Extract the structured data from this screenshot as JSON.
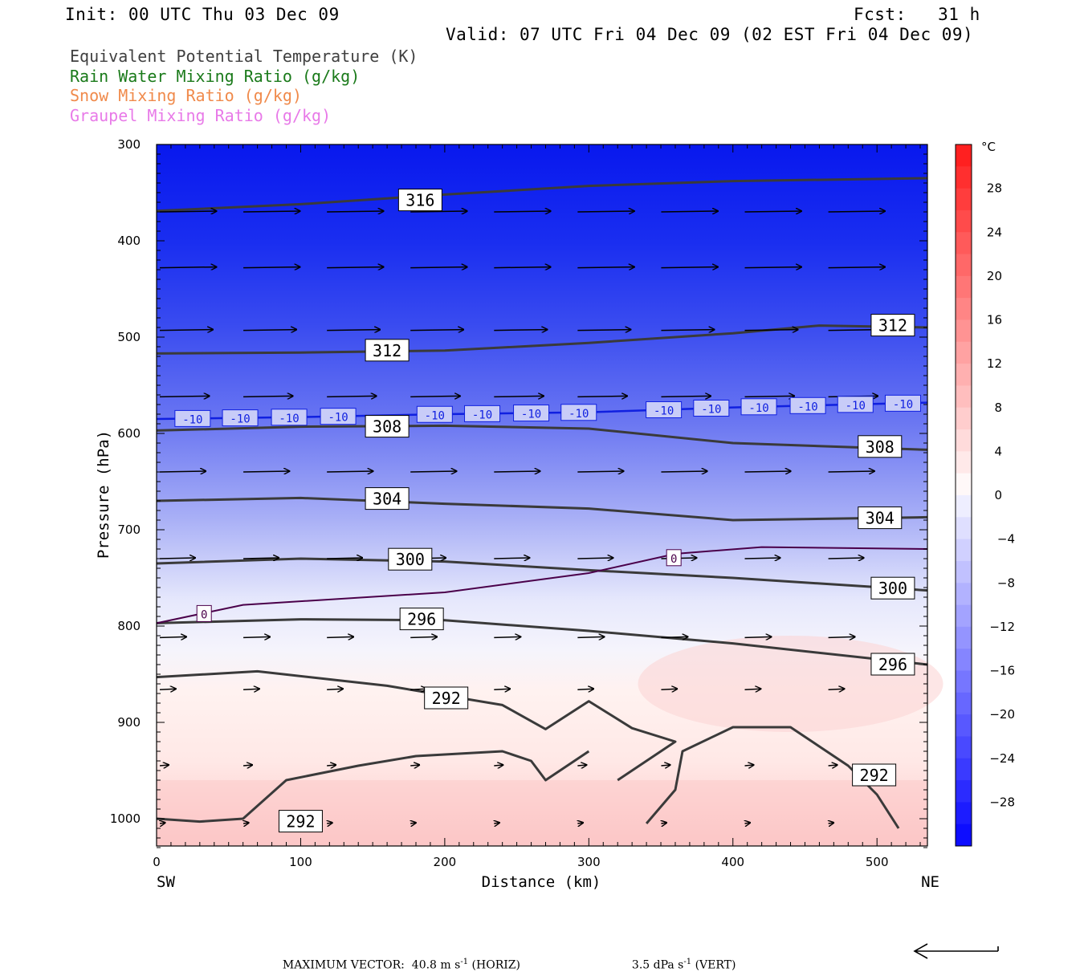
{
  "header": {
    "init": "Init: 00 UTC Thu 03 Dec 09",
    "fcst": "Fcst:   31 h",
    "valid": "Valid: 07 UTC Fri 04 Dec 09 (02 EST Fri 04 Dec 09)"
  },
  "legend": [
    {
      "text": "Equivalent Potential Temperature (K)",
      "color": "#404040"
    },
    {
      "text": "Rain Water Mixing Ratio (g/kg)",
      "color": "#1a7a1a"
    },
    {
      "text": "Snow Mixing Ratio (g/kg)",
      "color": "#f08a4b"
    },
    {
      "text": "Graupel Mixing Ratio (g/kg)",
      "color": "#e87ae8"
    }
  ],
  "footer": {
    "max_vector_label": "MAXIMUM VECTOR:",
    "horiz": "40.8 m s",
    "horiz_unit": "(HORIZ)",
    "vert": "3.5 dPa s",
    "vert_unit": "(VERT)",
    "exp": "-1"
  },
  "chart_data": {
    "type": "contour cross-section",
    "xlabel": "Distance (km)",
    "ylabel": "Pressure (hPa)",
    "x_ticks": [
      0,
      100,
      200,
      300,
      400,
      500
    ],
    "y_ticks": [
      300,
      400,
      500,
      600,
      700,
      800,
      900,
      1000
    ],
    "xlim": [
      0,
      535
    ],
    "ylim": [
      1030,
      300
    ],
    "x_end_labels": {
      "left": "SW",
      "right": "NE"
    },
    "colorbar": {
      "unit": "°C",
      "ticks": [
        28,
        24,
        20,
        16,
        12,
        8,
        4,
        0,
        -4,
        -8,
        -12,
        -16,
        -20,
        -24,
        -28
      ],
      "range": [
        -32,
        32
      ]
    },
    "theta_e_contours": [
      {
        "value": 316,
        "points": [
          [
            0,
            369
          ],
          [
            100,
            362
          ],
          [
            200,
            352
          ],
          [
            300,
            343
          ],
          [
            400,
            338
          ],
          [
            535,
            335
          ]
        ]
      },
      {
        "value": 312,
        "points": [
          [
            0,
            517
          ],
          [
            100,
            516
          ],
          [
            200,
            514
          ],
          [
            300,
            506
          ],
          [
            400,
            496
          ],
          [
            460,
            488
          ],
          [
            535,
            490
          ]
        ]
      },
      {
        "value": 308,
        "points": [
          [
            0,
            597
          ],
          [
            100,
            593
          ],
          [
            200,
            592
          ],
          [
            300,
            595
          ],
          [
            400,
            610
          ],
          [
            535,
            617
          ]
        ]
      },
      {
        "value": 304,
        "points": [
          [
            0,
            670
          ],
          [
            100,
            667
          ],
          [
            200,
            673
          ],
          [
            300,
            678
          ],
          [
            400,
            690
          ],
          [
            535,
            687
          ]
        ]
      },
      {
        "value": 300,
        "points": [
          [
            0,
            735
          ],
          [
            100,
            730
          ],
          [
            200,
            733
          ],
          [
            300,
            742
          ],
          [
            400,
            750
          ],
          [
            535,
            763
          ]
        ]
      },
      {
        "value": 296,
        "points": [
          [
            0,
            797
          ],
          [
            100,
            793
          ],
          [
            200,
            794
          ],
          [
            300,
            805
          ],
          [
            400,
            818
          ],
          [
            535,
            840
          ]
        ]
      },
      {
        "value": 292,
        "points": [
          [
            0,
            853
          ],
          [
            70,
            847
          ],
          [
            160,
            862
          ],
          [
            240,
            882
          ],
          [
            270,
            907
          ],
          [
            300,
            878
          ],
          [
            330,
            906
          ],
          [
            360,
            920
          ],
          [
            320,
            960
          ]
        ]
      },
      {
        "value": 292,
        "points": [
          [
            340,
            1005
          ],
          [
            360,
            970
          ],
          [
            365,
            930
          ],
          [
            400,
            905
          ],
          [
            440,
            905
          ],
          [
            480,
            945
          ],
          [
            500,
            975
          ],
          [
            515,
            1010
          ]
        ]
      },
      {
        "value": 292,
        "points": [
          [
            0,
            1000
          ],
          [
            30,
            1003
          ],
          [
            60,
            1000
          ],
          [
            90,
            960
          ],
          [
            140,
            945
          ],
          [
            180,
            935
          ],
          [
            240,
            930
          ],
          [
            260,
            940
          ],
          [
            270,
            960
          ],
          [
            300,
            930
          ]
        ]
      }
    ],
    "contour_labels": [
      {
        "value": "316",
        "x": 183,
        "p": 358
      },
      {
        "value": "312",
        "x": 160,
        "p": 514
      },
      {
        "value": "312",
        "x": 511,
        "p": 488
      },
      {
        "value": "308",
        "x": 160,
        "p": 593
      },
      {
        "value": "308",
        "x": 502,
        "p": 614
      },
      {
        "value": "304",
        "x": 160,
        "p": 668
      },
      {
        "value": "304",
        "x": 502,
        "p": 688
      },
      {
        "value": "300",
        "x": 176,
        "p": 731
      },
      {
        "value": "300",
        "x": 511,
        "p": 761
      },
      {
        "value": "296",
        "x": 184,
        "p": 793
      },
      {
        "value": "296",
        "x": 511,
        "p": 840
      },
      {
        "value": "292",
        "x": 201,
        "p": 875
      },
      {
        "value": "292",
        "x": 498,
        "p": 955
      },
      {
        "value": "292",
        "x": 100,
        "p": 1003
      }
    ],
    "isotherm_minus10_label": "-10",
    "isotherm_minus10": [
      [
        0,
        585
      ],
      [
        100,
        583
      ],
      [
        200,
        580
      ],
      [
        300,
        578
      ],
      [
        400,
        573
      ],
      [
        535,
        568
      ]
    ],
    "isotherm_0_label": "0",
    "isotherm_0": [
      [
        0,
        797
      ],
      [
        60,
        778
      ],
      [
        200,
        765
      ],
      [
        300,
        745
      ],
      [
        360,
        725
      ],
      [
        420,
        718
      ],
      [
        535,
        720
      ]
    ],
    "wind_rows": [
      {
        "p": 370,
        "len": 32
      },
      {
        "p": 428,
        "len": 32
      },
      {
        "p": 493,
        "len": 30
      },
      {
        "p": 562,
        "len": 28
      },
      {
        "p": 640,
        "len": 26
      },
      {
        "p": 730,
        "len": 20
      },
      {
        "p": 812,
        "len": 15
      },
      {
        "p": 866,
        "len": 9
      },
      {
        "p": 945,
        "len": 5
      },
      {
        "p": 1005,
        "len": 3
      }
    ]
  }
}
